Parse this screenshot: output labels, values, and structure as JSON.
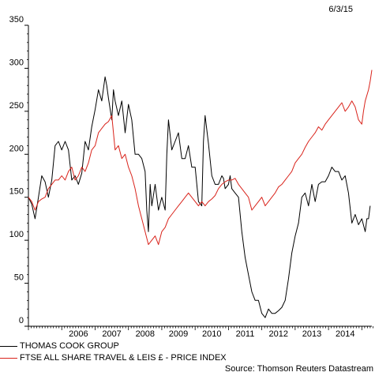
{
  "header": {
    "date": "6/3/15"
  },
  "source": "Source: Thomson Reuters Datastream",
  "colors": {
    "series1": "#000000",
    "series2": "#d9231b",
    "axis": "#000000"
  },
  "chart_data": {
    "type": "line",
    "title": "",
    "xlabel": "",
    "ylabel": "",
    "ylim": [
      0,
      350
    ],
    "xlim": [
      2005.0,
      2015.3
    ],
    "y_ticks": [
      0,
      50,
      100,
      150,
      200,
      250,
      300,
      350
    ],
    "x_ticks": [
      {
        "label": "2006",
        "pos": 2006.5
      },
      {
        "label": "2007",
        "pos": 2007.5
      },
      {
        "label": "2008",
        "pos": 2008.5
      },
      {
        "label": "2009",
        "pos": 2009.5
      },
      {
        "label": "2010",
        "pos": 2010.5
      },
      {
        "label": "2011",
        "pos": 2011.5
      },
      {
        "label": "2012",
        "pos": 2012.5
      },
      {
        "label": "2013",
        "pos": 2013.5
      },
      {
        "label": "2014",
        "pos": 2014.5
      }
    ],
    "grid": false,
    "legend_position": "bottom-left",
    "series": [
      {
        "name": "THOMAS COOK GROUP",
        "color": "#000000",
        "points": [
          [
            2005.0,
            150
          ],
          [
            2005.1,
            142
          ],
          [
            2005.2,
            125
          ],
          [
            2005.3,
            150
          ],
          [
            2005.4,
            175
          ],
          [
            2005.5,
            168
          ],
          [
            2005.6,
            150
          ],
          [
            2005.7,
            170
          ],
          [
            2005.8,
            210
          ],
          [
            2005.9,
            215
          ],
          [
            2006.0,
            205
          ],
          [
            2006.1,
            215
          ],
          [
            2006.2,
            205
          ],
          [
            2006.3,
            170
          ],
          [
            2006.4,
            175
          ],
          [
            2006.5,
            165
          ],
          [
            2006.6,
            178
          ],
          [
            2006.7,
            215
          ],
          [
            2006.8,
            205
          ],
          [
            2006.9,
            232
          ],
          [
            2007.0,
            252
          ],
          [
            2007.1,
            275
          ],
          [
            2007.2,
            262
          ],
          [
            2007.3,
            290
          ],
          [
            2007.35,
            280
          ],
          [
            2007.4,
            265
          ],
          [
            2007.5,
            240
          ],
          [
            2007.55,
            275
          ],
          [
            2007.6,
            262
          ],
          [
            2007.7,
            245
          ],
          [
            2007.8,
            262
          ],
          [
            2007.9,
            225
          ],
          [
            2008.0,
            258
          ],
          [
            2008.1,
            240
          ],
          [
            2008.2,
            200
          ],
          [
            2008.3,
            200
          ],
          [
            2008.4,
            195
          ],
          [
            2008.5,
            180
          ],
          [
            2008.55,
            135
          ],
          [
            2008.6,
            110
          ],
          [
            2008.65,
            165
          ],
          [
            2008.7,
            140
          ],
          [
            2008.8,
            165
          ],
          [
            2008.9,
            135
          ],
          [
            2009.0,
            150
          ],
          [
            2009.1,
            135
          ],
          [
            2009.15,
            200
          ],
          [
            2009.2,
            240
          ],
          [
            2009.3,
            205
          ],
          [
            2009.4,
            215
          ],
          [
            2009.5,
            225
          ],
          [
            2009.6,
            195
          ],
          [
            2009.7,
            195
          ],
          [
            2009.8,
            210
          ],
          [
            2009.9,
            185
          ],
          [
            2010.0,
            185
          ],
          [
            2010.1,
            145
          ],
          [
            2010.2,
            140
          ],
          [
            2010.25,
            215
          ],
          [
            2010.3,
            245
          ],
          [
            2010.4,
            212
          ],
          [
            2010.5,
            175
          ],
          [
            2010.6,
            165
          ],
          [
            2010.7,
            165
          ],
          [
            2010.8,
            175
          ],
          [
            2010.85,
            172
          ],
          [
            2010.9,
            160
          ],
          [
            2011.0,
            165
          ],
          [
            2011.05,
            175
          ],
          [
            2011.1,
            160
          ],
          [
            2011.2,
            155
          ],
          [
            2011.3,
            150
          ],
          [
            2011.4,
            110
          ],
          [
            2011.5,
            80
          ],
          [
            2011.6,
            60
          ],
          [
            2011.7,
            40
          ],
          [
            2011.8,
            30
          ],
          [
            2011.9,
            30
          ],
          [
            2012.0,
            15
          ],
          [
            2012.1,
            10
          ],
          [
            2012.2,
            20
          ],
          [
            2012.3,
            15
          ],
          [
            2012.4,
            15
          ],
          [
            2012.5,
            18
          ],
          [
            2012.6,
            22
          ],
          [
            2012.7,
            30
          ],
          [
            2012.8,
            55
          ],
          [
            2012.9,
            85
          ],
          [
            2013.0,
            105
          ],
          [
            2013.1,
            120
          ],
          [
            2013.2,
            150
          ],
          [
            2013.3,
            155
          ],
          [
            2013.4,
            140
          ],
          [
            2013.5,
            165
          ],
          [
            2013.6,
            145
          ],
          [
            2013.7,
            165
          ],
          [
            2013.8,
            168
          ],
          [
            2013.9,
            168
          ],
          [
            2014.0,
            175
          ],
          [
            2014.1,
            185
          ],
          [
            2014.2,
            180
          ],
          [
            2014.3,
            180
          ],
          [
            2014.4,
            170
          ],
          [
            2014.5,
            175
          ],
          [
            2014.6,
            155
          ],
          [
            2014.7,
            120
          ],
          [
            2014.8,
            130
          ],
          [
            2014.9,
            118
          ],
          [
            2015.0,
            125
          ],
          [
            2015.1,
            110
          ],
          [
            2015.15,
            125
          ],
          [
            2015.2,
            125
          ],
          [
            2015.25,
            140
          ]
        ]
      },
      {
        "name": "FTSE ALL SHARE TRAVEL & LEIS £ - PRICE INDEX",
        "color": "#d9231b",
        "points": [
          [
            2005.0,
            150
          ],
          [
            2005.1,
            145
          ],
          [
            2005.2,
            135
          ],
          [
            2005.3,
            145
          ],
          [
            2005.4,
            148
          ],
          [
            2005.5,
            150
          ],
          [
            2005.6,
            160
          ],
          [
            2005.7,
            165
          ],
          [
            2005.8,
            170
          ],
          [
            2005.9,
            170
          ],
          [
            2006.0,
            175
          ],
          [
            2006.1,
            170
          ],
          [
            2006.2,
            180
          ],
          [
            2006.3,
            185
          ],
          [
            2006.4,
            170
          ],
          [
            2006.5,
            175
          ],
          [
            2006.6,
            185
          ],
          [
            2006.7,
            180
          ],
          [
            2006.8,
            190
          ],
          [
            2006.9,
            205
          ],
          [
            2007.0,
            210
          ],
          [
            2007.1,
            225
          ],
          [
            2007.2,
            230
          ],
          [
            2007.3,
            235
          ],
          [
            2007.4,
            238
          ],
          [
            2007.5,
            245
          ],
          [
            2007.55,
            225
          ],
          [
            2007.6,
            205
          ],
          [
            2007.7,
            210
          ],
          [
            2007.8,
            195
          ],
          [
            2007.9,
            200
          ],
          [
            2008.0,
            185
          ],
          [
            2008.1,
            175
          ],
          [
            2008.2,
            160
          ],
          [
            2008.3,
            140
          ],
          [
            2008.4,
            125
          ],
          [
            2008.5,
            110
          ],
          [
            2008.6,
            95
          ],
          [
            2008.7,
            100
          ],
          [
            2008.8,
            105
          ],
          [
            2008.9,
            95
          ],
          [
            2009.0,
            110
          ],
          [
            2009.1,
            115
          ],
          [
            2009.2,
            125
          ],
          [
            2009.3,
            130
          ],
          [
            2009.4,
            135
          ],
          [
            2009.5,
            140
          ],
          [
            2009.6,
            145
          ],
          [
            2009.7,
            150
          ],
          [
            2009.8,
            155
          ],
          [
            2009.9,
            150
          ],
          [
            2010.0,
            145
          ],
          [
            2010.1,
            140
          ],
          [
            2010.2,
            145
          ],
          [
            2010.3,
            140
          ],
          [
            2010.4,
            145
          ],
          [
            2010.5,
            148
          ],
          [
            2010.6,
            152
          ],
          [
            2010.7,
            160
          ],
          [
            2010.8,
            165
          ],
          [
            2010.9,
            168
          ],
          [
            2011.0,
            170
          ],
          [
            2011.1,
            170
          ],
          [
            2011.2,
            172
          ],
          [
            2011.3,
            165
          ],
          [
            2011.4,
            160
          ],
          [
            2011.5,
            155
          ],
          [
            2011.6,
            150
          ],
          [
            2011.7,
            135
          ],
          [
            2011.8,
            140
          ],
          [
            2011.9,
            145
          ],
          [
            2012.0,
            150
          ],
          [
            2012.1,
            140
          ],
          [
            2012.2,
            145
          ],
          [
            2012.3,
            150
          ],
          [
            2012.4,
            155
          ],
          [
            2012.5,
            162
          ],
          [
            2012.6,
            165
          ],
          [
            2012.7,
            170
          ],
          [
            2012.8,
            175
          ],
          [
            2012.9,
            180
          ],
          [
            2013.0,
            190
          ],
          [
            2013.1,
            195
          ],
          [
            2013.2,
            200
          ],
          [
            2013.3,
            208
          ],
          [
            2013.4,
            215
          ],
          [
            2013.5,
            220
          ],
          [
            2013.6,
            225
          ],
          [
            2013.7,
            232
          ],
          [
            2013.8,
            228
          ],
          [
            2013.9,
            235
          ],
          [
            2014.0,
            240
          ],
          [
            2014.1,
            245
          ],
          [
            2014.2,
            250
          ],
          [
            2014.3,
            255
          ],
          [
            2014.4,
            260
          ],
          [
            2014.5,
            250
          ],
          [
            2014.6,
            255
          ],
          [
            2014.7,
            262
          ],
          [
            2014.8,
            255
          ],
          [
            2014.9,
            240
          ],
          [
            2015.0,
            235
          ],
          [
            2015.05,
            250
          ],
          [
            2015.1,
            262
          ],
          [
            2015.2,
            275
          ],
          [
            2015.25,
            285
          ],
          [
            2015.3,
            298
          ]
        ]
      }
    ]
  }
}
